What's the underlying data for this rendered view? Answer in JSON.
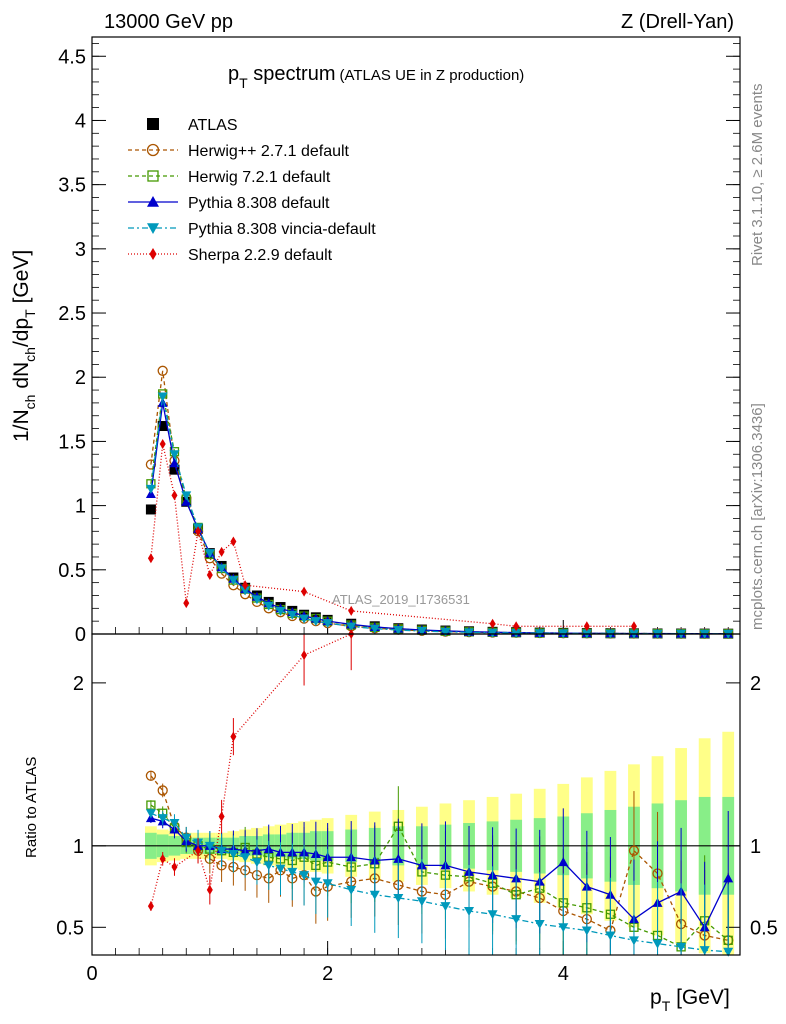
{
  "header": {
    "left": "13000 GeV pp",
    "right": "Z (Drell-Yan)"
  },
  "side_labels": {
    "rivet": "Rivet 3.1.10, ≥ 2.6M events",
    "mcplots": "mcplots.cern.ch [arXiv:1306.3436]"
  },
  "title": {
    "main": "p",
    "sub": "T",
    "rest": " spectrum",
    "small": "(ATLAS UE in Z production)"
  },
  "watermark": "ATLAS_2019_I1736531",
  "ylabel_top": "1/N_ch dN_ch/dp_T [GeV]",
  "ylabel_top_parts": {
    "a": "1/N",
    "b": "ch",
    "c": " dN",
    "d": "ch",
    "e": "/dp",
    "f": "T",
    "g": " [GeV]"
  },
  "ylabel_ratio": "Ratio to ATLAS",
  "xlabel": {
    "main": "p",
    "sub": "T",
    "rest": " [GeV]"
  },
  "legend": [
    {
      "label": "ATLAS",
      "color": "#000000",
      "marker": "square-filled",
      "dash": "none"
    },
    {
      "label": "Herwig++ 2.7.1 default",
      "color": "#aa5500",
      "marker": "circle-open",
      "dash": "4,3"
    },
    {
      "label": "Herwig 7.2.1 default",
      "color": "#449900",
      "marker": "square-open",
      "dash": "4,3"
    },
    {
      "label": "Pythia 8.308 default",
      "color": "#0000cc",
      "marker": "triangle-up",
      "dash": "none"
    },
    {
      "label": "Pythia 8.308 vincia-default",
      "color": "#0099bb",
      "marker": "triangle-down",
      "dash": "6,3,2,3"
    },
    {
      "label": "Sherpa 2.2.9 default",
      "color": "#dd0000",
      "marker": "diamond",
      "dash": "1,2"
    }
  ],
  "chart_data": [
    {
      "type": "line",
      "panel": "main",
      "xlim": [
        0,
        5.5
      ],
      "ylim": [
        0,
        4.65
      ],
      "x_ticks": [
        0,
        2,
        4
      ],
      "y_ticks": [
        "0",
        "0.5",
        "1",
        "1.5",
        "2",
        "2.5",
        "3",
        "3.5",
        "4",
        "4.5"
      ],
      "x": [
        0.5,
        0.6,
        0.7,
        0.8,
        0.9,
        1.0,
        1.1,
        1.2,
        1.3,
        1.4,
        1.5,
        1.6,
        1.7,
        1.8,
        1.9,
        2.0,
        2.2,
        2.4,
        2.6,
        2.8,
        3.0,
        3.2,
        3.4,
        3.6,
        3.8,
        4.0,
        4.2,
        4.4,
        4.6,
        4.8,
        5.0,
        5.2,
        5.4
      ],
      "series": [
        {
          "name": "ATLAS",
          "values": [
            0.97,
            1.62,
            1.28,
            1.03,
            0.82,
            0.63,
            0.53,
            0.44,
            0.36,
            0.3,
            0.25,
            0.21,
            0.18,
            0.15,
            0.13,
            0.11,
            0.08,
            0.06,
            0.045,
            0.035,
            0.027,
            0.021,
            0.017,
            0.014,
            0.011,
            0.009,
            0.007,
            0.006,
            0.005,
            0.004,
            0.0035,
            0.003,
            0.0025
          ]
        },
        {
          "name": "Herwig++ 2.7.1 default",
          "values": [
            1.32,
            2.05,
            1.35,
            1.06,
            0.8,
            0.59,
            0.47,
            0.38,
            0.31,
            0.25,
            0.2,
            0.17,
            0.14,
            0.12,
            0.1,
            0.085,
            0.06,
            0.045,
            0.034,
            0.025,
            0.019,
            0.015,
            0.012,
            0.01,
            0.008,
            0.006,
            0.005,
            0.004,
            0.0035,
            0.003,
            0.0025,
            0.002,
            0.0018
          ]
        },
        {
          "name": "Herwig 7.2.1 default",
          "values": [
            1.17,
            1.87,
            1.42,
            1.05,
            0.83,
            0.62,
            0.51,
            0.42,
            0.35,
            0.28,
            0.23,
            0.19,
            0.16,
            0.14,
            0.12,
            0.1,
            0.07,
            0.052,
            0.04,
            0.03,
            0.022,
            0.017,
            0.013,
            0.01,
            0.008,
            0.007,
            0.005,
            0.004,
            0.0035,
            0.003,
            0.0025,
            0.002,
            0.0018
          ]
        },
        {
          "name": "Pythia 8.308 default",
          "values": [
            1.09,
            1.8,
            1.33,
            1.03,
            0.82,
            0.63,
            0.52,
            0.43,
            0.35,
            0.29,
            0.24,
            0.2,
            0.17,
            0.14,
            0.12,
            0.1,
            0.075,
            0.055,
            0.042,
            0.031,
            0.024,
            0.018,
            0.014,
            0.011,
            0.009,
            0.007,
            0.006,
            0.005,
            0.004,
            0.0033,
            0.0028,
            0.0023,
            0.002
          ]
        },
        {
          "name": "Pythia 8.308 vincia-default",
          "values": [
            1.13,
            1.85,
            1.4,
            1.08,
            0.83,
            0.63,
            0.51,
            0.42,
            0.34,
            0.27,
            0.22,
            0.18,
            0.15,
            0.12,
            0.1,
            0.085,
            0.058,
            0.042,
            0.031,
            0.023,
            0.017,
            0.013,
            0.01,
            0.008,
            0.006,
            0.005,
            0.004,
            0.0033,
            0.0028,
            0.0023,
            0.0019,
            0.0016,
            0.0014
          ]
        },
        {
          "name": "Sherpa 2.2.9 default",
          "values": [
            0.59,
            1.48,
            1.08,
            0.24,
            0.8,
            0.46,
            0.64,
            0.72,
            0.38,
            null,
            null,
            null,
            null,
            0.33,
            null,
            null,
            0.18,
            null,
            null,
            null,
            null,
            null,
            0.08,
            0.06,
            null,
            null,
            0.06,
            null,
            0.06,
            null,
            null,
            null,
            null
          ]
        }
      ]
    },
    {
      "type": "line",
      "panel": "ratio",
      "xlim": [
        0,
        5.5
      ],
      "ylim": [
        0.33,
        2.3
      ],
      "xlabel": "p_T [GeV]",
      "ylabel": "Ratio to ATLAS",
      "y_ticks": [
        "0.5",
        "1",
        "2"
      ],
      "x_ticks": [
        "0",
        "2",
        "4"
      ],
      "x": [
        0.5,
        0.6,
        0.7,
        0.8,
        0.9,
        1.0,
        1.1,
        1.2,
        1.3,
        1.4,
        1.5,
        1.6,
        1.7,
        1.8,
        1.9,
        2.0,
        2.2,
        2.4,
        2.6,
        2.8,
        3.0,
        3.2,
        3.4,
        3.6,
        3.8,
        4.0,
        4.2,
        4.4,
        4.6,
        4.8,
        5.0,
        5.2,
        5.4
      ],
      "band_inner_half": [
        0.08,
        0.07,
        0.06,
        0.05,
        0.05,
        0.05,
        0.05,
        0.05,
        0.06,
        0.06,
        0.07,
        0.07,
        0.08,
        0.08,
        0.09,
        0.09,
        0.1,
        0.11,
        0.12,
        0.12,
        0.13,
        0.14,
        0.15,
        0.16,
        0.17,
        0.18,
        0.2,
        0.22,
        0.24,
        0.26,
        0.28,
        0.3,
        0.3
      ],
      "band_outer_half": [
        0.12,
        0.1,
        0.09,
        0.08,
        0.08,
        0.08,
        0.08,
        0.09,
        0.1,
        0.11,
        0.12,
        0.13,
        0.14,
        0.15,
        0.16,
        0.17,
        0.19,
        0.21,
        0.22,
        0.24,
        0.26,
        0.28,
        0.3,
        0.32,
        0.35,
        0.38,
        0.42,
        0.46,
        0.5,
        0.55,
        0.6,
        0.66,
        0.7
      ],
      "series": [
        {
          "name": "Herwig++ 2.7.1 default",
          "values": [
            1.43,
            1.34,
            1.12,
            1.05,
            0.97,
            0.92,
            0.88,
            0.87,
            0.85,
            0.82,
            0.8,
            0.85,
            0.8,
            0.82,
            0.72,
            0.75,
            0.78,
            0.8,
            0.76,
            0.72,
            0.7,
            0.78,
            0.75,
            0.72,
            0.68,
            0.6,
            0.55,
            0.48,
            0.97,
            0.83,
            0.52,
            0.45,
            0.42
          ]
        },
        {
          "name": "Herwig 7.2.1 default",
          "values": [
            1.25,
            1.2,
            1.11,
            1.02,
            1.0,
            0.98,
            0.97,
            0.96,
            0.99,
            0.95,
            0.93,
            0.92,
            0.91,
            0.93,
            0.88,
            0.9,
            0.87,
            0.89,
            1.12,
            0.84,
            0.82,
            0.81,
            0.77,
            0.7,
            0.74,
            0.65,
            0.62,
            0.58,
            0.5,
            0.45,
            0.38,
            0.54,
            0.42
          ]
        },
        {
          "name": "Pythia 8.308 default",
          "values": [
            1.17,
            1.15,
            1.1,
            1.03,
            1.0,
            1.0,
            0.98,
            0.98,
            0.97,
            0.97,
            0.98,
            0.96,
            0.96,
            0.96,
            0.95,
            0.93,
            0.93,
            0.91,
            0.92,
            0.88,
            0.88,
            0.84,
            0.82,
            0.8,
            0.78,
            0.9,
            0.75,
            0.7,
            0.55,
            0.65,
            0.72,
            0.5,
            0.8
          ]
        },
        {
          "name": "Pythia 8.308 vincia-default",
          "values": [
            1.2,
            1.17,
            1.14,
            1.05,
            1.02,
            1.0,
            0.97,
            0.95,
            0.93,
            0.9,
            0.88,
            0.86,
            0.84,
            0.82,
            0.78,
            0.77,
            0.73,
            0.7,
            0.68,
            0.66,
            0.63,
            0.6,
            0.58,
            0.55,
            0.52,
            0.5,
            0.48,
            0.45,
            0.42,
            0.4,
            0.38,
            0.36,
            0.35
          ]
        },
        {
          "name": "Sherpa 2.2.9 default",
          "values": [
            0.63,
            0.92,
            0.87,
            null,
            0.97,
            0.73,
            1.18,
            1.67,
            null,
            null,
            null,
            null,
            null,
            2.17,
            null,
            null,
            2.3,
            null,
            null,
            null,
            null,
            null,
            null,
            null,
            null,
            null,
            null,
            null,
            null,
            null,
            null,
            null,
            null
          ]
        }
      ]
    }
  ]
}
